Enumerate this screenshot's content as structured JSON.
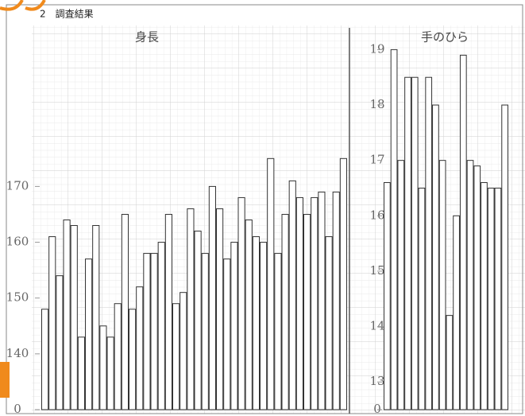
{
  "header": "2　調査結果",
  "chart_data": [
    {
      "type": "bar",
      "title": "身長",
      "values": [
        148,
        161,
        154,
        164,
        163,
        143,
        157,
        163,
        145,
        143,
        149,
        165,
        148,
        152,
        158,
        158,
        160,
        165,
        149,
        151,
        166,
        162,
        158,
        170,
        166,
        157,
        160,
        168,
        164,
        161,
        160,
        175,
        158,
        165,
        171,
        168,
        165,
        168,
        169,
        161,
        169,
        175
      ],
      "color": "#ffffff",
      "ylim": [
        130,
        197
      ],
      "yticks": [
        {
          "value": 130,
          "label": "0"
        },
        140,
        150,
        160,
        170
      ],
      "grid": true
    },
    {
      "type": "bar",
      "title": "手のひら",
      "values": [
        16.6,
        19,
        17,
        18.5,
        18.5,
        16.5,
        18.5,
        18,
        17,
        14.2,
        16,
        18.9,
        17,
        16.9,
        16.6,
        16.5,
        16.5,
        18
      ],
      "color": "#ffffff",
      "ylim": [
        12.5,
        19.25
      ],
      "yticks": [
        {
          "value": 12.5,
          "label": "0"
        },
        13,
        14,
        15,
        16,
        17,
        18,
        19
      ],
      "grid": true
    }
  ]
}
